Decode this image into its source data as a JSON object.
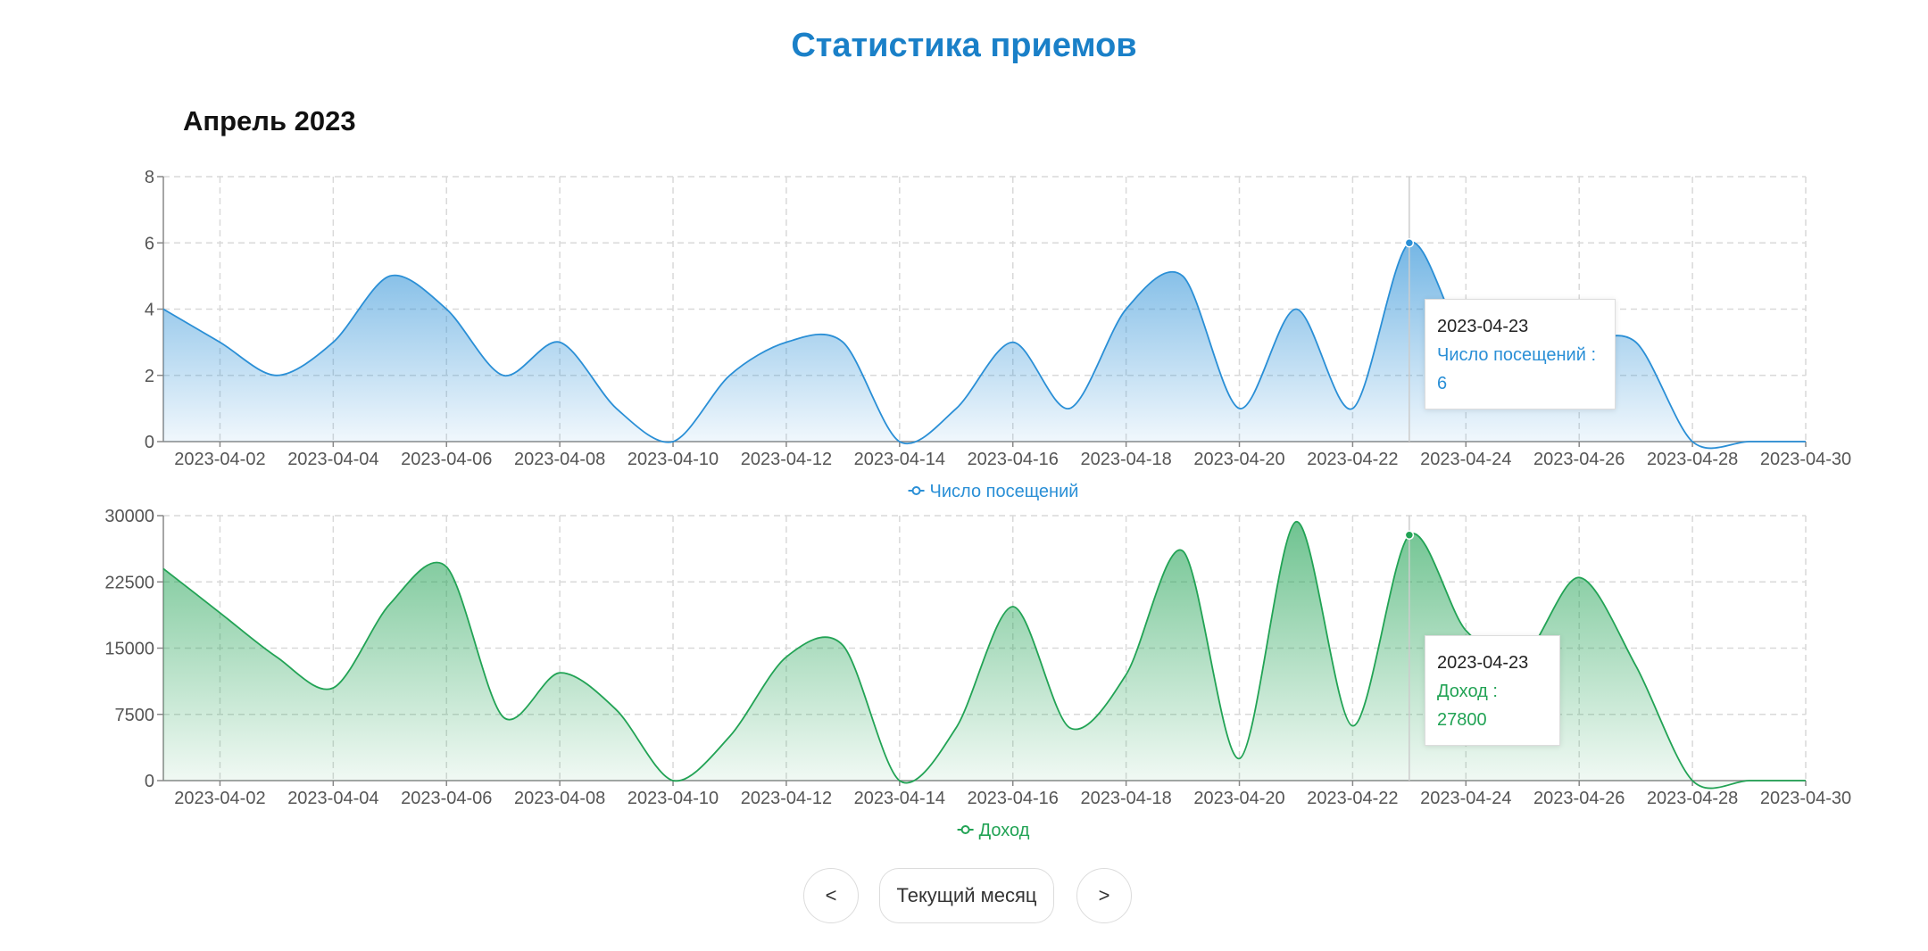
{
  "header": {
    "title": "Статистика приемов"
  },
  "month_label": "Апрель 2023",
  "chart_data": [
    {
      "type": "area",
      "x": [
        "2023-04-01",
        "2023-04-02",
        "2023-04-03",
        "2023-04-04",
        "2023-04-05",
        "2023-04-06",
        "2023-04-07",
        "2023-04-08",
        "2023-04-09",
        "2023-04-10",
        "2023-04-11",
        "2023-04-12",
        "2023-04-13",
        "2023-04-14",
        "2023-04-15",
        "2023-04-16",
        "2023-04-17",
        "2023-04-18",
        "2023-04-19",
        "2023-04-20",
        "2023-04-21",
        "2023-04-22",
        "2023-04-23",
        "2023-04-24",
        "2023-04-25",
        "2023-04-26",
        "2023-04-27",
        "2023-04-28",
        "2023-04-29",
        "2023-04-30"
      ],
      "x_tick_labels": [
        "2023-04-02",
        "2023-04-04",
        "2023-04-06",
        "2023-04-08",
        "2023-04-10",
        "2023-04-12",
        "2023-04-14",
        "2023-04-16",
        "2023-04-18",
        "2023-04-20",
        "2023-04-22",
        "2023-04-24",
        "2023-04-26",
        "2023-04-28",
        "2023-04-30"
      ],
      "y_ticks": [
        "0",
        "2",
        "4",
        "6",
        "8"
      ],
      "ylim": [
        0,
        8
      ],
      "series": [
        {
          "name": "Число посещений",
          "color": "#2a8fd6",
          "values": [
            4,
            3,
            2,
            3,
            5,
            4,
            2,
            3,
            1,
            0,
            2,
            3,
            3,
            0,
            1,
            3,
            1,
            4,
            5,
            1,
            4,
            1,
            6,
            3,
            3,
            3,
            3,
            0,
            0,
            0
          ]
        }
      ],
      "grid": true,
      "legend": "bottom-center",
      "tooltip": {
        "date": "2023-04-23",
        "label": "Число посещений : 6"
      }
    },
    {
      "type": "area",
      "x": [
        "2023-04-01",
        "2023-04-02",
        "2023-04-03",
        "2023-04-04",
        "2023-04-05",
        "2023-04-06",
        "2023-04-07",
        "2023-04-08",
        "2023-04-09",
        "2023-04-10",
        "2023-04-11",
        "2023-04-12",
        "2023-04-13",
        "2023-04-14",
        "2023-04-15",
        "2023-04-16",
        "2023-04-17",
        "2023-04-18",
        "2023-04-19",
        "2023-04-20",
        "2023-04-21",
        "2023-04-22",
        "2023-04-23",
        "2023-04-24",
        "2023-04-25",
        "2023-04-26",
        "2023-04-27",
        "2023-04-28",
        "2023-04-29",
        "2023-04-30"
      ],
      "x_tick_labels": [
        "2023-04-02",
        "2023-04-04",
        "2023-04-06",
        "2023-04-08",
        "2023-04-10",
        "2023-04-12",
        "2023-04-14",
        "2023-04-16",
        "2023-04-18",
        "2023-04-20",
        "2023-04-22",
        "2023-04-24",
        "2023-04-26",
        "2023-04-28",
        "2023-04-30"
      ],
      "y_ticks": [
        "0",
        "7500",
        "15000",
        "22500",
        "30000"
      ],
      "ylim": [
        0,
        30000
      ],
      "series": [
        {
          "name": "Доход",
          "color": "#22a355",
          "values": [
            24000,
            19000,
            14000,
            10500,
            20000,
            24200,
            7200,
            12200,
            8000,
            0,
            5000,
            14000,
            15300,
            0,
            6000,
            19700,
            6000,
            12000,
            26000,
            2500,
            29300,
            6200,
            27800,
            17000,
            14000,
            23000,
            13000,
            0,
            0,
            0
          ]
        }
      ],
      "grid": true,
      "legend": "bottom-center",
      "tooltip": {
        "date": "2023-04-23",
        "label": "Доход : 27800"
      }
    }
  ],
  "navigation": {
    "prev_label": "<",
    "current_label": "Текущий месяц",
    "next_label": ">"
  }
}
